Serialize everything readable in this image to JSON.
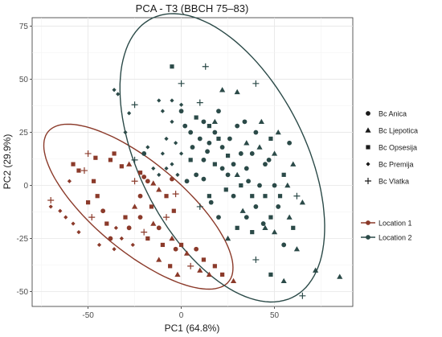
{
  "chart_data": {
    "type": "scatter",
    "title": "PCA - T3 (BBCH 75–83)",
    "xlabel": "PC1 (64.8%)",
    "ylabel": "PC2 (29.9%)",
    "xlim": [
      -80,
      92
    ],
    "ylim": [
      -57,
      79
    ],
    "x_ticks": [
      -50,
      0,
      50
    ],
    "y_ticks": [
      75,
      50,
      25,
      0,
      -25,
      -50
    ],
    "grid": true,
    "legend_position": "right",
    "colors": {
      "Location 1": "#8b3a2a",
      "Location 2": "#2b4a48"
    },
    "shape_legend": [
      "Bc Anica",
      "Bc Ljepotica",
      "Bc Opsesija",
      "Bc Premija",
      "Bc Vlatka"
    ],
    "shape_symbols": [
      "circle",
      "triangle",
      "square",
      "diamond",
      "plus"
    ],
    "color_legend": [
      "Location 1",
      "Location 2"
    ],
    "ellipses": [
      {
        "group": "Location 1",
        "cx": -23,
        "cy": -10,
        "rx": 60,
        "ry": 22,
        "angle_deg": -35
      },
      {
        "group": "Location 2",
        "cx": 22,
        "cy": 13,
        "rx": 76,
        "ry": 43,
        "angle_deg": -57
      }
    ],
    "series": [
      {
        "location": "Location 1",
        "points": [
          [
            -70,
            -7,
            "plus"
          ],
          [
            -60,
            2,
            "diamond"
          ],
          [
            -58,
            10,
            "square"
          ],
          [
            -55,
            7,
            "square"
          ],
          [
            -52,
            7,
            "plus"
          ],
          [
            -50,
            15,
            "plus"
          ],
          [
            -47,
            2,
            "square"
          ],
          [
            -46,
            13,
            "square"
          ],
          [
            -38,
            12,
            "square"
          ],
          [
            -36,
            15,
            "square"
          ],
          [
            -32,
            9,
            "square"
          ],
          [
            -28,
            10,
            "triangle"
          ],
          [
            -25,
            2,
            "plus"
          ],
          [
            -22,
            6,
            "square"
          ],
          [
            -20,
            4,
            "circle"
          ],
          [
            -18,
            2,
            "circle"
          ],
          [
            -15,
            1,
            "triangle"
          ],
          [
            -12,
            -2,
            "triangle"
          ],
          [
            -8,
            -5,
            "square"
          ],
          [
            -5,
            3,
            "circle"
          ],
          [
            -3,
            -4,
            "plus"
          ],
          [
            -70,
            -10,
            "diamond"
          ],
          [
            -65,
            -12,
            "diamond"
          ],
          [
            -62,
            -15,
            "diamond"
          ],
          [
            -58,
            -18,
            "diamond"
          ],
          [
            -55,
            -22,
            "diamond"
          ],
          [
            -50,
            -8,
            "square"
          ],
          [
            -45,
            -5,
            "square"
          ],
          [
            -42,
            -12,
            "circle"
          ],
          [
            -40,
            -18,
            "square"
          ],
          [
            -38,
            -25,
            "circle"
          ],
          [
            -35,
            -20,
            "diamond"
          ],
          [
            -30,
            -15,
            "square"
          ],
          [
            -28,
            -20,
            "circle"
          ],
          [
            -25,
            -10,
            "triangle"
          ],
          [
            -22,
            -15,
            "circle"
          ],
          [
            -20,
            -22,
            "plus"
          ],
          [
            -18,
            -25,
            "square"
          ],
          [
            -15,
            -18,
            "triangle"
          ],
          [
            -12,
            -20,
            "circle"
          ],
          [
            -10,
            -28,
            "square"
          ],
          [
            -8,
            -15,
            "plus"
          ],
          [
            -5,
            -25,
            "triangle"
          ],
          [
            -3,
            -30,
            "circle"
          ],
          [
            0,
            -28,
            "square"
          ],
          [
            3,
            -32,
            "triangle"
          ],
          [
            5,
            -38,
            "plus"
          ],
          [
            8,
            -30,
            "circle"
          ],
          [
            10,
            -40,
            "triangle"
          ],
          [
            12,
            -35,
            "square"
          ],
          [
            15,
            -42,
            "triangle"
          ],
          [
            18,
            -38,
            "square"
          ],
          [
            22,
            -42,
            "square"
          ],
          [
            28,
            -45,
            "triangle"
          ],
          [
            -48,
            -15,
            "plus"
          ],
          [
            -44,
            -28,
            "diamond"
          ],
          [
            -36,
            -30,
            "diamond"
          ],
          [
            -32,
            -25,
            "diamond"
          ],
          [
            -26,
            -28,
            "diamond"
          ],
          [
            -12,
            -35,
            "triangle"
          ],
          [
            -6,
            -38,
            "square"
          ],
          [
            -2,
            -42,
            "triangle"
          ],
          [
            -16,
            -10,
            "square"
          ],
          [
            -22,
            -5,
            "circle"
          ],
          [
            -4,
            -12,
            "square"
          ]
        ]
      },
      {
        "location": "Location 2",
        "points": [
          [
            -36,
            45,
            "diamond"
          ],
          [
            -34,
            43,
            "diamond"
          ],
          [
            -28,
            34,
            "diamond"
          ],
          [
            -25,
            38,
            "plus"
          ],
          [
            -5,
            56,
            "square"
          ],
          [
            0,
            48,
            "plus"
          ],
          [
            -12,
            40,
            "diamond"
          ],
          [
            -5,
            40,
            "diamond"
          ],
          [
            0,
            38,
            "diamond"
          ],
          [
            10,
            39,
            "plus"
          ],
          [
            13,
            56,
            "plus"
          ],
          [
            22,
            45,
            "triangle"
          ],
          [
            30,
            44,
            "triangle"
          ],
          [
            40,
            48,
            "plus"
          ],
          [
            -10,
            35,
            "diamond"
          ],
          [
            -5,
            30,
            "diamond"
          ],
          [
            -3,
            20,
            "diamond"
          ],
          [
            0,
            35,
            "circle"
          ],
          [
            2,
            28,
            "circle"
          ],
          [
            5,
            25,
            "circle"
          ],
          [
            8,
            32,
            "square"
          ],
          [
            12,
            30,
            "circle"
          ],
          [
            15,
            28,
            "square"
          ],
          [
            18,
            25,
            "circle"
          ],
          [
            20,
            22,
            "square"
          ],
          [
            22,
            18,
            "circle"
          ],
          [
            25,
            14,
            "square"
          ],
          [
            28,
            10,
            "circle"
          ],
          [
            30,
            5,
            "triangle"
          ],
          [
            32,
            0,
            "square"
          ],
          [
            35,
            20,
            "triangle"
          ],
          [
            38,
            15,
            "circle"
          ],
          [
            40,
            25,
            "circle"
          ],
          [
            42,
            18,
            "triangle"
          ],
          [
            45,
            10,
            "circle"
          ],
          [
            48,
            22,
            "square"
          ],
          [
            50,
            15,
            "triangle"
          ],
          [
            52,
            25,
            "triangle"
          ],
          [
            55,
            5,
            "square"
          ],
          [
            58,
            20,
            "circle"
          ],
          [
            60,
            10,
            "triangle"
          ],
          [
            62,
            -5,
            "plus"
          ],
          [
            65,
            -8,
            "triangle"
          ],
          [
            60,
            -20,
            "square"
          ],
          [
            55,
            -28,
            "circle"
          ],
          [
            50,
            -22,
            "triangle"
          ],
          [
            48,
            -15,
            "square"
          ],
          [
            45,
            -20,
            "triangle"
          ],
          [
            40,
            -10,
            "circle"
          ],
          [
            38,
            -5,
            "square"
          ],
          [
            35,
            -15,
            "circle"
          ],
          [
            30,
            -20,
            "square"
          ],
          [
            25,
            -25,
            "triangle"
          ],
          [
            20,
            -15,
            "circle"
          ],
          [
            15,
            -5,
            "square"
          ],
          [
            10,
            -10,
            "plus"
          ],
          [
            8,
            5,
            "circle"
          ],
          [
            5,
            12,
            "square"
          ],
          [
            3,
            2,
            "circle"
          ],
          [
            0,
            15,
            "diamond"
          ],
          [
            -2,
            5,
            "diamond"
          ],
          [
            -5,
            10,
            "diamond"
          ],
          [
            -8,
            22,
            "diamond"
          ],
          [
            -10,
            15,
            "diamond"
          ],
          [
            -12,
            5,
            "diamond"
          ],
          [
            -15,
            8,
            "diamond"
          ],
          [
            12,
            12,
            "circle"
          ],
          [
            18,
            10,
            "square"
          ],
          [
            25,
            5,
            "circle"
          ],
          [
            28,
            -5,
            "circle"
          ],
          [
            33,
            -12,
            "triangle"
          ],
          [
            36,
            2,
            "circle"
          ],
          [
            42,
            0,
            "circle"
          ],
          [
            45,
            -5,
            "square"
          ],
          [
            52,
            -10,
            "circle"
          ],
          [
            58,
            -15,
            "triangle"
          ],
          [
            62,
            -30,
            "triangle"
          ],
          [
            40,
            -35,
            "plus"
          ],
          [
            48,
            -42,
            "square"
          ],
          [
            55,
            -45,
            "triangle"
          ],
          [
            65,
            -52,
            "plus"
          ],
          [
            72,
            -40,
            "triangle"
          ],
          [
            85,
            -43,
            "triangle"
          ],
          [
            18,
            30,
            "triangle"
          ],
          [
            15,
            20,
            "circle"
          ],
          [
            22,
            8,
            "circle"
          ],
          [
            10,
            22,
            "circle"
          ],
          [
            6,
            18,
            "circle"
          ],
          [
            30,
            28,
            "circle"
          ],
          [
            35,
            8,
            "circle"
          ],
          [
            43,
            30,
            "triangle"
          ],
          [
            50,
            0,
            "circle"
          ],
          [
            -8,
            8,
            "diamond"
          ],
          [
            -18,
            18,
            "diamond"
          ],
          [
            -30,
            25,
            "diamond"
          ],
          [
            -25,
            12,
            "plus"
          ],
          [
            -20,
            15,
            "circle"
          ],
          [
            24,
            -2,
            "square"
          ],
          [
            32,
            15,
            "circle"
          ],
          [
            38,
            -22,
            "square"
          ],
          [
            44,
            -18,
            "circle"
          ],
          [
            47,
            12,
            "circle"
          ],
          [
            53,
            -5,
            "square"
          ],
          [
            57,
            0,
            "triangle"
          ],
          [
            12,
            3,
            "circle"
          ],
          [
            16,
            -8,
            "circle"
          ],
          [
            26,
            22,
            "circle"
          ],
          [
            34,
            30,
            "circle"
          ],
          [
            20,
            35,
            "circle"
          ],
          [
            14,
            16,
            "circle"
          ]
        ]
      }
    ]
  }
}
